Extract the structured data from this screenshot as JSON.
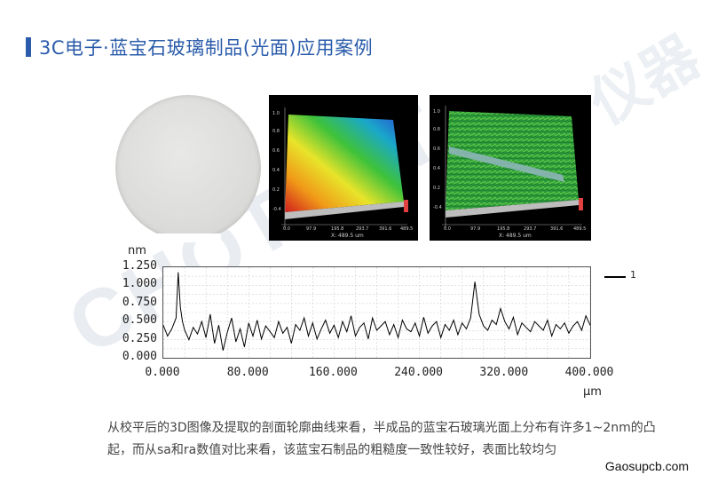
{
  "title": "3C电子·蓝宝石玻璃制品(光面)应用案例",
  "watermark": "CHOTEST",
  "watermark_cn": "仪器",
  "panel_left": {
    "z_axis": [
      "-0.4",
      "0.2",
      "0.4",
      "0.6",
      "0.8",
      "1.0"
    ],
    "x_ticks": [
      "0.0",
      "97.9",
      "195.8",
      "293.7",
      "391.6",
      "489.5"
    ],
    "x_label": "X: 489.5 um"
  },
  "panel_right": {
    "z_axis": [
      "-0.4",
      "0.2",
      "0.4",
      "0.6",
      "0.8",
      "1.0"
    ],
    "x_ticks": [
      "0.0",
      "97.9",
      "195.8",
      "293.7",
      "391.6",
      "489.5"
    ],
    "x_label": "X: 489.5 um"
  },
  "chart_data": {
    "type": "line",
    "ylabel": "nm",
    "xlabel": "µm",
    "ylim": [
      0,
      1.25
    ],
    "xlim": [
      0,
      400
    ],
    "yticks": [
      "1.250",
      "1.000",
      "0.750",
      "0.500",
      "0.250",
      "0.000"
    ],
    "xticks": [
      "0.000",
      "80.000",
      "160.000",
      "240.000",
      "320.000",
      "400.000"
    ],
    "grid": true,
    "legend": "top-right",
    "series": [
      {
        "name": "1",
        "x": [
          0,
          4,
          8,
          12,
          14,
          16,
          18,
          20,
          24,
          28,
          32,
          36,
          40,
          44,
          48,
          52,
          56,
          60,
          64,
          68,
          72,
          76,
          80,
          84,
          88,
          92,
          96,
          100,
          104,
          108,
          112,
          116,
          120,
          124,
          128,
          132,
          136,
          140,
          144,
          148,
          152,
          156,
          160,
          164,
          168,
          172,
          176,
          180,
          184,
          188,
          192,
          196,
          200,
          204,
          208,
          212,
          216,
          220,
          224,
          228,
          232,
          236,
          240,
          244,
          248,
          252,
          256,
          260,
          264,
          268,
          272,
          276,
          280,
          284,
          288,
          292,
          296,
          300,
          304,
          308,
          312,
          316,
          320,
          324,
          328,
          332,
          336,
          340,
          344,
          348,
          352,
          356,
          360,
          364,
          368,
          372,
          376,
          380,
          384,
          388,
          392,
          396,
          400
        ],
        "values": [
          0.45,
          0.3,
          0.4,
          0.55,
          1.18,
          0.7,
          0.5,
          0.38,
          0.25,
          0.42,
          0.33,
          0.5,
          0.28,
          0.6,
          0.2,
          0.45,
          0.1,
          0.35,
          0.55,
          0.22,
          0.4,
          0.15,
          0.48,
          0.3,
          0.52,
          0.26,
          0.44,
          0.36,
          0.28,
          0.5,
          0.34,
          0.42,
          0.2,
          0.46,
          0.38,
          0.55,
          0.3,
          0.48,
          0.26,
          0.4,
          0.52,
          0.34,
          0.45,
          0.28,
          0.5,
          0.36,
          0.58,
          0.3,
          0.42,
          0.48,
          0.26,
          0.55,
          0.38,
          0.44,
          0.5,
          0.32,
          0.46,
          0.28,
          0.52,
          0.4,
          0.36,
          0.48,
          0.3,
          0.56,
          0.34,
          0.44,
          0.5,
          0.28,
          0.46,
          0.38,
          0.52,
          0.32,
          0.48,
          0.4,
          0.55,
          1.05,
          0.6,
          0.44,
          0.38,
          0.52,
          0.46,
          0.68,
          0.5,
          0.4,
          0.56,
          0.32,
          0.48,
          0.42,
          0.36,
          0.5,
          0.44,
          0.38,
          0.52,
          0.3,
          0.46,
          0.4,
          0.48,
          0.34,
          0.44,
          0.5,
          0.38,
          0.58,
          0.45
        ]
      }
    ]
  },
  "caption": "从校平后的3D图像及提取的剖面轮廓曲线来看，半成品的蓝宝石玻璃光面上分布有许多1~2nm的凸起，而从sa和ra数值对比来看，该蓝宝石制品的粗糙度一致性较好，表面比较均匀",
  "site": "Gaosupcb.com"
}
